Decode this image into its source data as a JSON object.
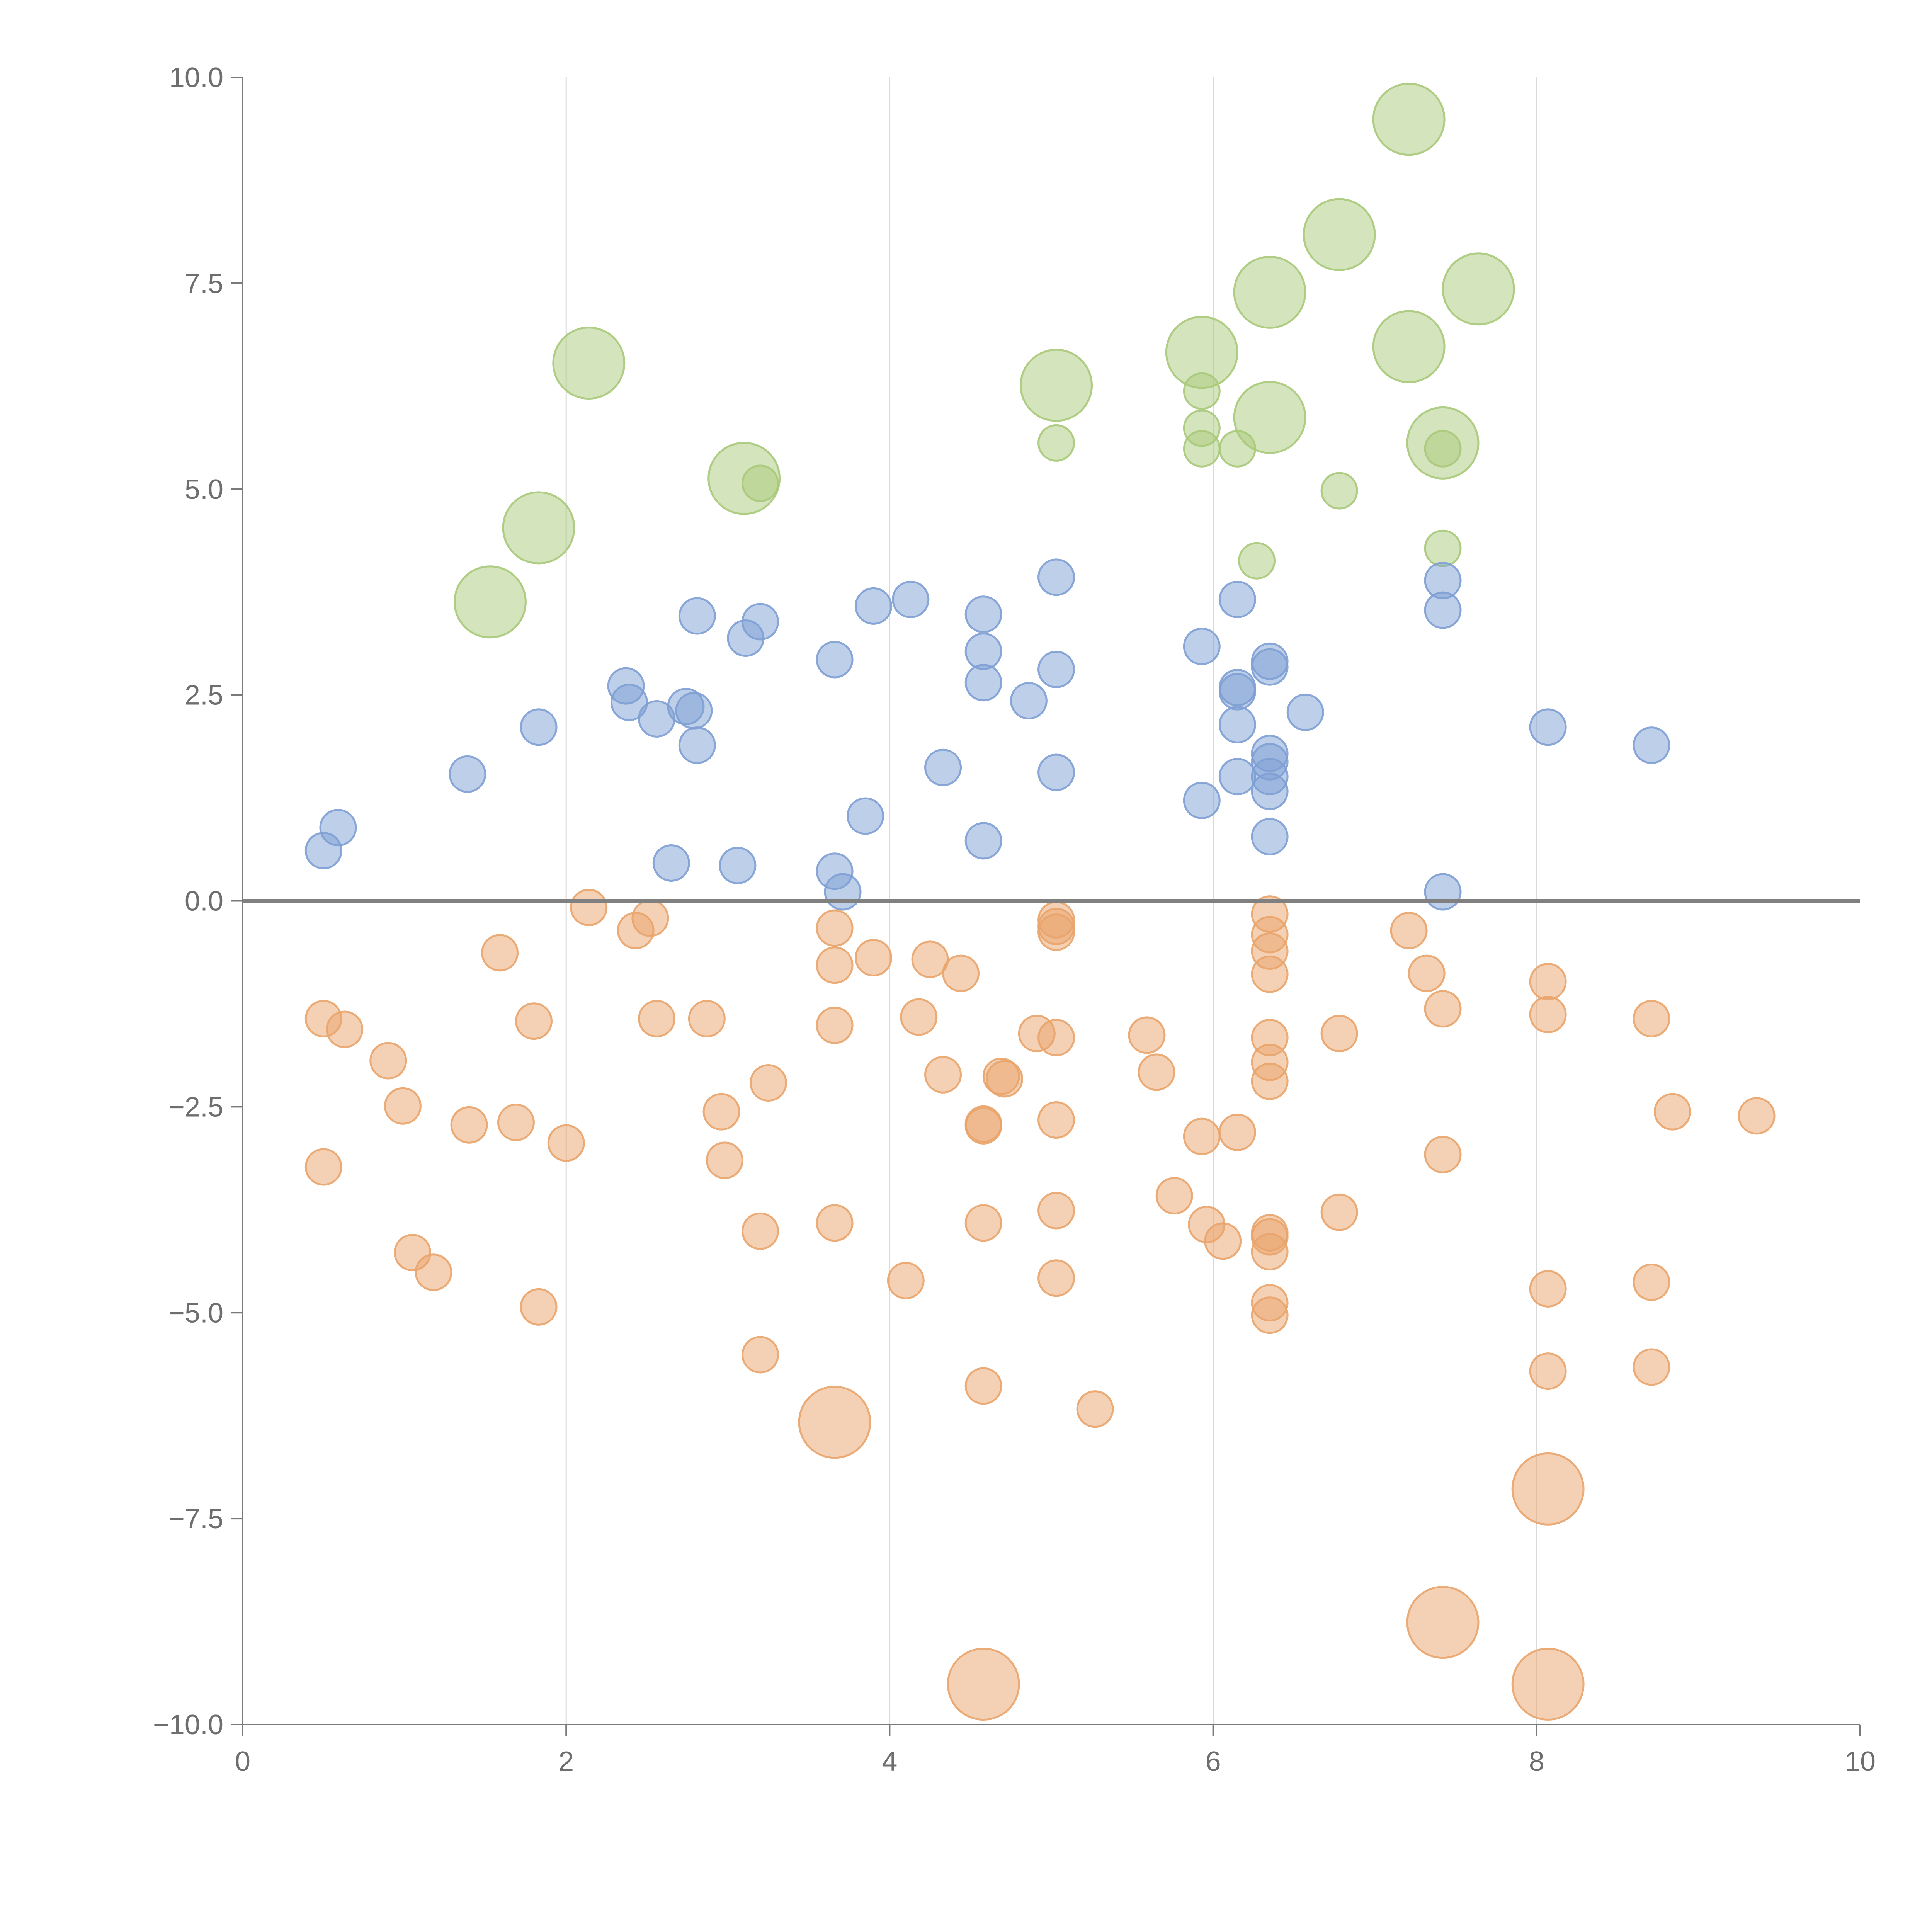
{
  "chart_data": {
    "type": "scatter",
    "title": "",
    "xlabel": "",
    "ylabel": "",
    "xlim": [
      0,
      10
    ],
    "ylim": [
      -10,
      10
    ],
    "grid": "vertical lines only",
    "legend": "none",
    "x_ticks": [
      "0",
      "2",
      "4",
      "6",
      "8",
      "10"
    ],
    "y_ticks": [
      "−10.0",
      "−7.5",
      "−5.0",
      "−2.5",
      "0.0",
      "2.5",
      "5.0",
      "7.5",
      "10.0"
    ],
    "reference_line_y": 0,
    "colors": {
      "green": "#a9c97a",
      "blue": "#7e9fd4",
      "orange": "#e9a46c",
      "axis": "#7a7a7a",
      "grid": "#d9d9d9"
    },
    "series": [
      {
        "name": "green",
        "color": "#a9c97a",
        "points": [
          {
            "x": 1.53,
            "y": 3.63,
            "s": 2
          },
          {
            "x": 1.83,
            "y": 4.53,
            "s": 2
          },
          {
            "x": 2.14,
            "y": 6.53,
            "s": 2
          },
          {
            "x": 3.1,
            "y": 5.13,
            "s": 2
          },
          {
            "x": 3.2,
            "y": 5.07,
            "s": 1
          },
          {
            "x": 5.03,
            "y": 6.26,
            "s": 2
          },
          {
            "x": 5.03,
            "y": 5.56,
            "s": 1
          },
          {
            "x": 5.93,
            "y": 6.66,
            "s": 2
          },
          {
            "x": 5.93,
            "y": 6.19,
            "s": 1
          },
          {
            "x": 5.93,
            "y": 5.74,
            "s": 1
          },
          {
            "x": 5.93,
            "y": 5.49,
            "s": 1
          },
          {
            "x": 6.15,
            "y": 5.49,
            "s": 1
          },
          {
            "x": 6.35,
            "y": 7.39,
            "s": 2
          },
          {
            "x": 6.35,
            "y": 5.87,
            "s": 2
          },
          {
            "x": 6.27,
            "y": 4.13,
            "s": 1
          },
          {
            "x": 6.78,
            "y": 8.09,
            "s": 2
          },
          {
            "x": 6.78,
            "y": 4.98,
            "s": 1
          },
          {
            "x": 7.21,
            "y": 9.49,
            "s": 2
          },
          {
            "x": 7.21,
            "y": 6.73,
            "s": 2
          },
          {
            "x": 7.42,
            "y": 5.56,
            "s": 2
          },
          {
            "x": 7.42,
            "y": 5.49,
            "s": 1
          },
          {
            "x": 7.42,
            "y": 4.28,
            "s": 1
          },
          {
            "x": 7.64,
            "y": 7.43,
            "s": 2
          }
        ]
      },
      {
        "name": "blue",
        "color": "#7e9fd4",
        "points": [
          {
            "x": 0.5,
            "y": 0.61,
            "s": 1
          },
          {
            "x": 0.59,
            "y": 0.89,
            "s": 1
          },
          {
            "x": 1.39,
            "y": 1.54,
            "s": 1
          },
          {
            "x": 1.83,
            "y": 2.11,
            "s": 1
          },
          {
            "x": 2.37,
            "y": 2.61,
            "s": 1
          },
          {
            "x": 2.39,
            "y": 2.41,
            "s": 1
          },
          {
            "x": 2.56,
            "y": 2.21,
            "s": 1
          },
          {
            "x": 2.65,
            "y": 0.46,
            "s": 1
          },
          {
            "x": 2.74,
            "y": 2.36,
            "s": 1
          },
          {
            "x": 2.79,
            "y": 2.31,
            "s": 1
          },
          {
            "x": 2.81,
            "y": 1.89,
            "s": 1
          },
          {
            "x": 2.81,
            "y": 3.46,
            "s": 1
          },
          {
            "x": 3.06,
            "y": 0.43,
            "s": 1
          },
          {
            "x": 3.11,
            "y": 3.19,
            "s": 1
          },
          {
            "x": 3.2,
            "y": 3.39,
            "s": 1
          },
          {
            "x": 3.66,
            "y": 2.93,
            "s": 1
          },
          {
            "x": 3.66,
            "y": 0.36,
            "s": 1
          },
          {
            "x": 3.71,
            "y": 0.11,
            "s": 1
          },
          {
            "x": 3.85,
            "y": 1.03,
            "s": 1
          },
          {
            "x": 3.9,
            "y": 3.58,
            "s": 1
          },
          {
            "x": 4.13,
            "y": 3.66,
            "s": 1
          },
          {
            "x": 4.33,
            "y": 1.62,
            "s": 1
          },
          {
            "x": 4.58,
            "y": 3.48,
            "s": 1
          },
          {
            "x": 4.58,
            "y": 3.03,
            "s": 1
          },
          {
            "x": 4.58,
            "y": 2.65,
            "s": 1
          },
          {
            "x": 4.58,
            "y": 0.73,
            "s": 1
          },
          {
            "x": 4.86,
            "y": 2.43,
            "s": 1
          },
          {
            "x": 5.03,
            "y": 3.93,
            "s": 1
          },
          {
            "x": 5.03,
            "y": 2.81,
            "s": 1
          },
          {
            "x": 5.03,
            "y": 1.56,
            "s": 1
          },
          {
            "x": 5.93,
            "y": 3.09,
            "s": 1
          },
          {
            "x": 5.93,
            "y": 1.22,
            "s": 1
          },
          {
            "x": 6.15,
            "y": 3.66,
            "s": 1
          },
          {
            "x": 6.15,
            "y": 2.59,
            "s": 1
          },
          {
            "x": 6.15,
            "y": 2.54,
            "s": 1
          },
          {
            "x": 6.15,
            "y": 2.14,
            "s": 1
          },
          {
            "x": 6.15,
            "y": 1.51,
            "s": 1
          },
          {
            "x": 6.35,
            "y": 2.91,
            "s": 1
          },
          {
            "x": 6.35,
            "y": 2.84,
            "s": 1
          },
          {
            "x": 6.35,
            "y": 1.79,
            "s": 1
          },
          {
            "x": 6.35,
            "y": 1.69,
            "s": 1
          },
          {
            "x": 6.35,
            "y": 1.51,
            "s": 1
          },
          {
            "x": 6.35,
            "y": 1.33,
            "s": 1
          },
          {
            "x": 6.35,
            "y": 0.78,
            "s": 1
          },
          {
            "x": 6.57,
            "y": 2.29,
            "s": 1
          },
          {
            "x": 7.42,
            "y": 3.89,
            "s": 1
          },
          {
            "x": 7.42,
            "y": 3.53,
            "s": 1
          },
          {
            "x": 7.42,
            "y": 0.11,
            "s": 1
          },
          {
            "x": 8.07,
            "y": 2.11,
            "s": 1
          },
          {
            "x": 8.71,
            "y": 1.89,
            "s": 1
          }
        ]
      },
      {
        "name": "orange",
        "color": "#e9a46c",
        "points": [
          {
            "x": 0.5,
            "y": -1.43,
            "s": 1
          },
          {
            "x": 0.5,
            "y": -3.23,
            "s": 1
          },
          {
            "x": 0.63,
            "y": -1.56,
            "s": 1
          },
          {
            "x": 0.9,
            "y": -1.94,
            "s": 1
          },
          {
            "x": 0.99,
            "y": -2.49,
            "s": 1
          },
          {
            "x": 1.05,
            "y": -4.27,
            "s": 1
          },
          {
            "x": 1.18,
            "y": -4.51,
            "s": 1
          },
          {
            "x": 1.4,
            "y": -2.72,
            "s": 1
          },
          {
            "x": 1.59,
            "y": -0.63,
            "s": 1
          },
          {
            "x": 1.69,
            "y": -2.69,
            "s": 1
          },
          {
            "x": 1.8,
            "y": -1.46,
            "s": 1
          },
          {
            "x": 1.83,
            "y": -4.93,
            "s": 1
          },
          {
            "x": 2.0,
            "y": -2.94,
            "s": 1
          },
          {
            "x": 2.14,
            "y": -0.08,
            "s": 1
          },
          {
            "x": 2.43,
            "y": -0.36,
            "s": 1
          },
          {
            "x": 2.52,
            "y": -0.21,
            "s": 1
          },
          {
            "x": 2.56,
            "y": -1.43,
            "s": 1
          },
          {
            "x": 2.87,
            "y": -1.43,
            "s": 1
          },
          {
            "x": 2.96,
            "y": -2.56,
            "s": 1
          },
          {
            "x": 2.98,
            "y": -3.15,
            "s": 1
          },
          {
            "x": 3.2,
            "y": -4.01,
            "s": 1
          },
          {
            "x": 3.2,
            "y": -5.51,
            "s": 1
          },
          {
            "x": 3.25,
            "y": -2.21,
            "s": 1
          },
          {
            "x": 3.66,
            "y": -0.33,
            "s": 1
          },
          {
            "x": 3.66,
            "y": -0.78,
            "s": 1
          },
          {
            "x": 3.66,
            "y": -1.51,
            "s": 1
          },
          {
            "x": 3.66,
            "y": -3.91,
            "s": 1
          },
          {
            "x": 3.66,
            "y": -6.33,
            "s": 2
          },
          {
            "x": 3.9,
            "y": -0.69,
            "s": 1
          },
          {
            "x": 4.1,
            "y": -4.61,
            "s": 1
          },
          {
            "x": 4.18,
            "y": -1.41,
            "s": 1
          },
          {
            "x": 4.25,
            "y": -0.71,
            "s": 1
          },
          {
            "x": 4.33,
            "y": -2.11,
            "s": 1
          },
          {
            "x": 4.44,
            "y": -0.88,
            "s": 1
          },
          {
            "x": 4.58,
            "y": -2.71,
            "s": 1
          },
          {
            "x": 4.58,
            "y": -2.73,
            "s": 1
          },
          {
            "x": 4.58,
            "y": -3.91,
            "s": 1
          },
          {
            "x": 4.58,
            "y": -5.89,
            "s": 1
          },
          {
            "x": 4.58,
            "y": -9.51,
            "s": 2
          },
          {
            "x": 4.69,
            "y": -2.13,
            "s": 1
          },
          {
            "x": 4.71,
            "y": -2.16,
            "s": 1
          },
          {
            "x": 4.91,
            "y": -1.61,
            "s": 1
          },
          {
            "x": 5.03,
            "y": -0.23,
            "s": 1
          },
          {
            "x": 5.03,
            "y": -0.31,
            "s": 1
          },
          {
            "x": 5.03,
            "y": -0.38,
            "s": 1
          },
          {
            "x": 5.03,
            "y": -1.66,
            "s": 1
          },
          {
            "x": 5.03,
            "y": -2.66,
            "s": 1
          },
          {
            "x": 5.03,
            "y": -3.76,
            "s": 1
          },
          {
            "x": 5.03,
            "y": -4.58,
            "s": 1
          },
          {
            "x": 5.27,
            "y": -6.17,
            "s": 1
          },
          {
            "x": 5.59,
            "y": -1.63,
            "s": 1
          },
          {
            "x": 5.65,
            "y": -2.08,
            "s": 1
          },
          {
            "x": 5.76,
            "y": -3.58,
            "s": 1
          },
          {
            "x": 5.93,
            "y": -2.86,
            "s": 1
          },
          {
            "x": 5.96,
            "y": -3.93,
            "s": 1
          },
          {
            "x": 6.06,
            "y": -4.13,
            "s": 1
          },
          {
            "x": 6.15,
            "y": -2.81,
            "s": 1
          },
          {
            "x": 6.35,
            "y": -0.16,
            "s": 1
          },
          {
            "x": 6.35,
            "y": -0.41,
            "s": 1
          },
          {
            "x": 6.35,
            "y": -0.61,
            "s": 1
          },
          {
            "x": 6.35,
            "y": -0.89,
            "s": 1
          },
          {
            "x": 6.35,
            "y": -1.66,
            "s": 1
          },
          {
            "x": 6.35,
            "y": -1.96,
            "s": 1
          },
          {
            "x": 6.35,
            "y": -2.19,
            "s": 1
          },
          {
            "x": 6.35,
            "y": -4.03,
            "s": 1
          },
          {
            "x": 6.35,
            "y": -4.08,
            "s": 1
          },
          {
            "x": 6.35,
            "y": -4.26,
            "s": 1
          },
          {
            "x": 6.35,
            "y": -4.88,
            "s": 1
          },
          {
            "x": 6.35,
            "y": -5.03,
            "s": 1
          },
          {
            "x": 6.78,
            "y": -1.61,
            "s": 1
          },
          {
            "x": 6.78,
            "y": -3.78,
            "s": 1
          },
          {
            "x": 7.21,
            "y": -0.36,
            "s": 1
          },
          {
            "x": 7.32,
            "y": -0.88,
            "s": 1
          },
          {
            "x": 7.42,
            "y": -1.31,
            "s": 1
          },
          {
            "x": 7.42,
            "y": -3.08,
            "s": 1
          },
          {
            "x": 7.42,
            "y": -8.76,
            "s": 2
          },
          {
            "x": 8.07,
            "y": -0.98,
            "s": 1
          },
          {
            "x": 8.07,
            "y": -1.38,
            "s": 1
          },
          {
            "x": 8.07,
            "y": -4.71,
            "s": 1
          },
          {
            "x": 8.07,
            "y": -5.71,
            "s": 1
          },
          {
            "x": 8.07,
            "y": -7.14,
            "s": 2
          },
          {
            "x": 8.07,
            "y": -9.51,
            "s": 2
          },
          {
            "x": 8.71,
            "y": -1.43,
            "s": 1
          },
          {
            "x": 8.71,
            "y": -4.63,
            "s": 1
          },
          {
            "x": 8.71,
            "y": -5.66,
            "s": 1
          },
          {
            "x": 8.84,
            "y": -2.56,
            "s": 1
          },
          {
            "x": 9.36,
            "y": -2.61,
            "s": 1
          }
        ]
      }
    ]
  }
}
